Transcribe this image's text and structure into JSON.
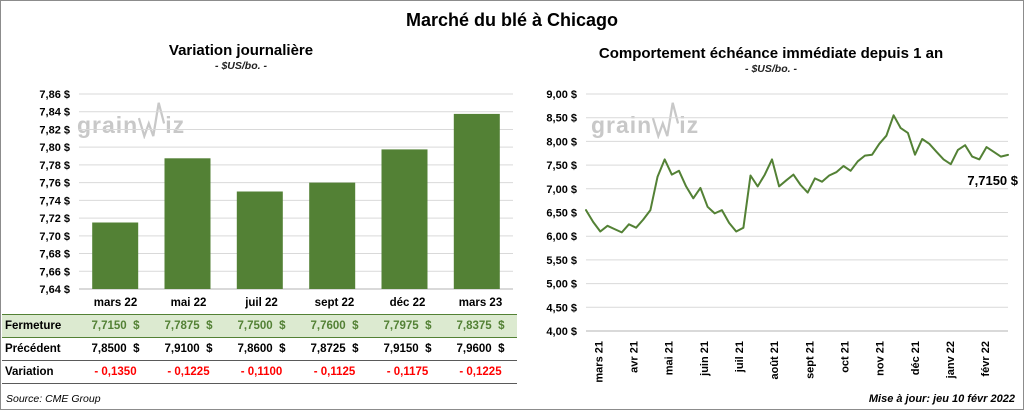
{
  "page": {
    "title": "Marché du blé à Chicago",
    "watermark": "grainwiz",
    "watermark_part1": "grain",
    "watermark_part2": "iz",
    "source": "Source: CME Group",
    "updated": "Mise à jour: jeu 10 févr 2022"
  },
  "colors": {
    "green": "#538135",
    "light_green_row": "#dcead0",
    "red": "#ff0000",
    "grid": "#d9d9d9",
    "watermark": "#c8c8c8"
  },
  "chart_data": [
    {
      "type": "bar",
      "title": "Variation  journalière",
      "subtitle": "- $US/bo. -",
      "categories": [
        "mars 22",
        "mai 22",
        "juil 22",
        "sept 22",
        "déc 22",
        "mars 23"
      ],
      "values": [
        7.715,
        7.7875,
        7.75,
        7.76,
        7.7975,
        7.8375
      ],
      "ylim": [
        7.64,
        7.86
      ],
      "ytick_step": 0.02,
      "ytick_labels": [
        "7,64 $",
        "7,66 $",
        "7,68 $",
        "7,70 $",
        "7,72 $",
        "7,74 $",
        "7,76 $",
        "7,78 $",
        "7,80 $",
        "7,82 $",
        "7,84 $",
        "7,86 $"
      ],
      "grid": true,
      "bar_color": "#538135",
      "xlabel": "",
      "ylabel": ""
    },
    {
      "type": "line",
      "title": "Comportement  échéance  immédiate  depuis 1 an",
      "subtitle": "- $US/bo. -",
      "x_labels": [
        "mars 21",
        "avr 21",
        "mai 21",
        "juin 21",
        "juil 21",
        "août 21",
        "sept 21",
        "oct 21",
        "nov 21",
        "déc 21",
        "janv 22",
        "févr 22"
      ],
      "values": [
        6.55,
        6.3,
        6.1,
        6.22,
        6.15,
        6.08,
        6.25,
        6.18,
        6.35,
        6.55,
        7.25,
        7.62,
        7.3,
        7.38,
        7.05,
        6.8,
        7.02,
        6.62,
        6.48,
        6.55,
        6.28,
        6.1,
        6.18,
        7.28,
        7.05,
        7.3,
        7.62,
        7.05,
        7.18,
        7.3,
        7.08,
        6.92,
        7.22,
        7.15,
        7.28,
        7.35,
        7.48,
        7.38,
        7.58,
        7.7,
        7.72,
        7.95,
        8.12,
        8.55,
        8.28,
        8.18,
        7.72,
        8.05,
        7.95,
        7.78,
        7.62,
        7.52,
        7.82,
        7.92,
        7.68,
        7.62,
        7.88,
        7.78,
        7.68,
        7.715
      ],
      "ylim": [
        4.0,
        9.0
      ],
      "ytick_step": 0.5,
      "ytick_labels": [
        "4,00 $",
        "4,50 $",
        "5,00 $",
        "5,50 $",
        "6,00 $",
        "6,50 $",
        "7,00 $",
        "7,50 $",
        "8,00 $",
        "8,50 $",
        "9,00 $"
      ],
      "grid": true,
      "line_color": "#538135",
      "annotation": "7,7150 $",
      "last_value": 7.715,
      "xlabel": "",
      "ylabel": ""
    }
  ],
  "table": {
    "rows": [
      {
        "label": "Fermeture",
        "style": "green",
        "values": [
          "7,7150  $",
          "7,7875  $",
          "7,7500  $",
          "7,7600  $",
          "7,7975  $",
          "7,8375  $"
        ]
      },
      {
        "label": "Précédent",
        "style": "black",
        "values": [
          "7,8500  $",
          "7,9100  $",
          "7,8600  $",
          "7,8725  $",
          "7,9150  $",
          "7,9600  $"
        ]
      },
      {
        "label": "Variation",
        "style": "red",
        "values": [
          "- 0,1350",
          "- 0,1225",
          "- 0,1100",
          "- 0,1125",
          "- 0,1175",
          "- 0,1225"
        ]
      }
    ]
  }
}
